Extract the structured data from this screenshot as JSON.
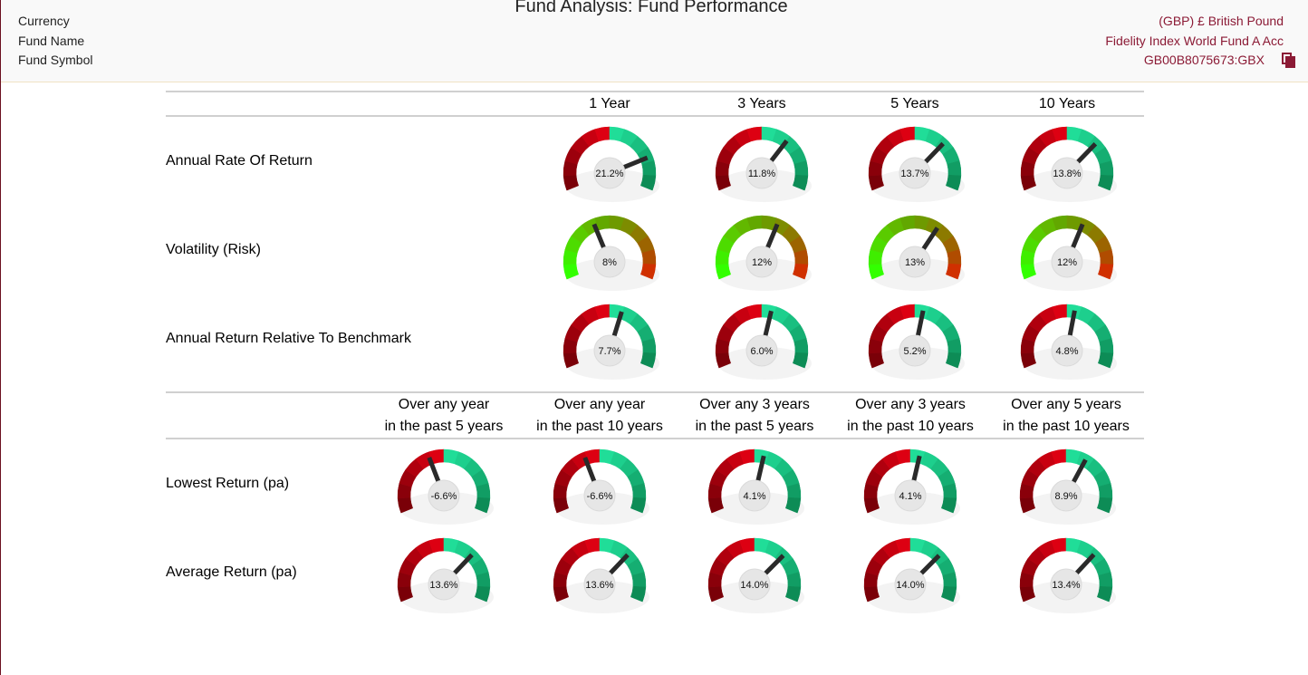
{
  "header": {
    "title": "Fund Analysis: Fund Performance",
    "fields": [
      {
        "label": "Currency",
        "value": "(GBP) £ British Pound"
      },
      {
        "label": "Fund Name",
        "value": "Fidelity Index World Fund A Acc"
      },
      {
        "label": "Fund Symbol",
        "value": "GB00B8075673:GBX"
      }
    ]
  },
  "section1": {
    "columns": [
      "1 Year",
      "3 Years",
      "5 Years",
      "10 Years"
    ],
    "rows": [
      {
        "label": "Annual Rate Of Return",
        "gauge_range": [
          -35,
          35
        ],
        "colors": [
          "#7a0008",
          "#8a000a",
          "#9c000c",
          "#b0000e",
          "#c80010",
          "#dd0012",
          "#20dd98",
          "#1dcf8d",
          "#19bf80",
          "#15ae72",
          "#119d64",
          "#0d8c56"
        ],
        "gauges": [
          {
            "value": 21.2,
            "label": "21.2%"
          },
          {
            "value": 11.8,
            "label": "11.8%"
          },
          {
            "value": 13.7,
            "label": "13.7%"
          },
          {
            "value": 13.8,
            "label": "13.8%"
          }
        ]
      },
      {
        "label": "Volatility (Risk)",
        "gauge_range": [
          0,
          20
        ],
        "colors": [
          "#33ff00",
          "#3fee00",
          "#4ddc00",
          "#5acb00",
          "#62b800",
          "#62a800",
          "#6e9a00",
          "#7d8c00",
          "#8c7a00",
          "#9c6400",
          "#b04c00",
          "#d03000"
        ],
        "gauges": [
          {
            "value": 8,
            "label": "8%"
          },
          {
            "value": 12,
            "label": "12%"
          },
          {
            "value": 13,
            "label": "13%"
          },
          {
            "value": 12,
            "label": "12%"
          }
        ]
      },
      {
        "label": "Annual Return Relative To Benchmark",
        "gauge_range": [
          -50,
          50
        ],
        "colors": [
          "#7a0008",
          "#8a000a",
          "#9c000c",
          "#b0000e",
          "#c80010",
          "#dd0012",
          "#20dd98",
          "#1dcf8d",
          "#19bf80",
          "#15ae72",
          "#119d64",
          "#0d8c56"
        ],
        "gauges": [
          {
            "value": 7.7,
            "label": "7.7%"
          },
          {
            "value": 6.0,
            "label": "6.0%"
          },
          {
            "value": 5.2,
            "label": "5.2%"
          },
          {
            "value": 4.8,
            "label": "4.8%"
          }
        ]
      }
    ]
  },
  "section2": {
    "columns": [
      [
        "Over any year",
        "in the past 5 years"
      ],
      [
        "Over any year",
        "in the past 10 years"
      ],
      [
        "Over any 3 years",
        "in the past 5 years"
      ],
      [
        "Over any 3 years",
        "in the past 10 years"
      ],
      [
        "Over any 5 years",
        "in the past 10 years"
      ]
    ],
    "rows": [
      {
        "label": "Lowest Return (pa)",
        "gauge_range": [
          -35,
          35
        ],
        "colors": [
          "#7a0008",
          "#8a000a",
          "#9c000c",
          "#b0000e",
          "#c80010",
          "#dd0012",
          "#20dd98",
          "#1dcf8d",
          "#19bf80",
          "#15ae72",
          "#119d64",
          "#0d8c56"
        ],
        "gauges": [
          {
            "value": -6.6,
            "label": "-6.6%"
          },
          {
            "value": -6.6,
            "label": "-6.6%"
          },
          {
            "value": 4.1,
            "label": "4.1%"
          },
          {
            "value": 4.1,
            "label": "4.1%"
          },
          {
            "value": 8.9,
            "label": "8.9%"
          }
        ]
      },
      {
        "label": "Average Return (pa)",
        "gauge_range": [
          -35,
          35
        ],
        "colors": [
          "#7a0008",
          "#8a000a",
          "#9c000c",
          "#b0000e",
          "#c80010",
          "#dd0012",
          "#20dd98",
          "#1dcf8d",
          "#19bf80",
          "#15ae72",
          "#119d64",
          "#0d8c56"
        ],
        "gauges": [
          {
            "value": 13.6,
            "label": "13.6%"
          },
          {
            "value": 13.6,
            "label": "13.6%"
          },
          {
            "value": 14.0,
            "label": "14.0%"
          },
          {
            "value": 14.0,
            "label": "14.0%"
          },
          {
            "value": 13.4,
            "label": "13.4%"
          }
        ]
      }
    ]
  }
}
